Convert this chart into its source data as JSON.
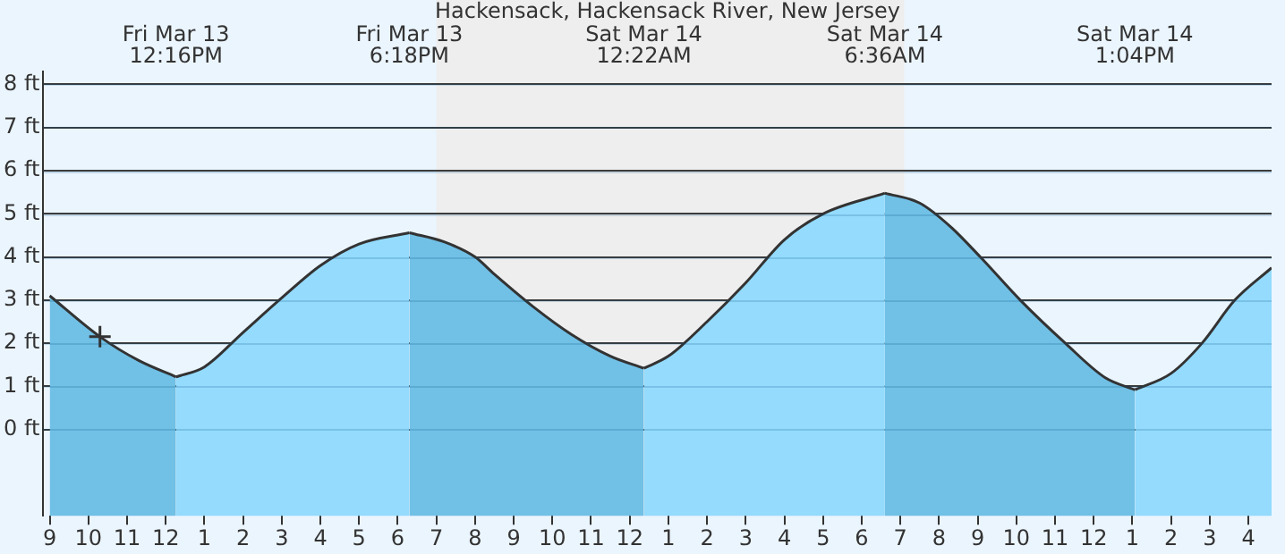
{
  "chart_data": {
    "type": "area",
    "title": "Hackensack, Hackensack River, New Jersey",
    "series": [
      {
        "color": "#71c0e6",
        "x": [
          "--03-13T09:00",
          "--03-13T10:18",
          "--03-13T11:18",
          "--03-13T12:16"
        ],
        "values": [
          3.1,
          2.15,
          1.6,
          1.22
        ]
      },
      {
        "color": "#94dbfd",
        "x": [
          "--03-13T12:16",
          "--03-13T13:00",
          "--03-13T14:00",
          "--03-13T15:00",
          "--03-13T16:00",
          "--03-13T17:00",
          "--03-13T18:18"
        ],
        "values": [
          1.22,
          1.45,
          2.25,
          3.05,
          3.8,
          4.3,
          4.56
        ]
      },
      {
        "color": "#71c0e6",
        "x": [
          "--03-13T18:18",
          "--03-13T19:12",
          "--03-13T20:00",
          "--03-13T20:30",
          "--03-13T21:30",
          "--03-13T22:30",
          "--03-13T23:30",
          "--03-14T00:22"
        ],
        "values": [
          4.56,
          4.35,
          4.0,
          3.6,
          2.85,
          2.2,
          1.7,
          1.42
        ]
      },
      {
        "color": "#94dbfd",
        "x": [
          "--03-14T00:22",
          "--03-14T01:00",
          "--03-14T02:00",
          "--03-14T03:00",
          "--03-14T04:00",
          "--03-14T05:00",
          "--03-14T06:36"
        ],
        "values": [
          1.42,
          1.7,
          2.5,
          3.4,
          4.4,
          5.0,
          5.48
        ]
      },
      {
        "color": "#71c0e6",
        "x": [
          "--03-14T06:36",
          "--03-14T07:30",
          "--03-14T08:18",
          "--03-14T09:04",
          "--03-14T10:06",
          "--03-14T11:16",
          "--03-14T12:18",
          "--03-14T13:04"
        ],
        "values": [
          5.48,
          5.25,
          4.7,
          4.0,
          3.0,
          2.0,
          1.2,
          0.92
        ]
      },
      {
        "color": "#94dbfd",
        "x": [
          "--03-14T13:04",
          "--03-14T14:00",
          "--03-14T14:48",
          "--03-14T15:39",
          "--03-14T16:36"
        ],
        "values": [
          0.92,
          1.3,
          2.0,
          3.0,
          3.75
        ]
      },
      {
        "type": "scatter",
        "color": "#333333",
        "marker": "cross",
        "x": [
          "--03-13T10:18"
        ],
        "values": [
          2.15
        ]
      }
    ],
    "xlim": [
      "--03-13T08:50",
      "--03-14T16:36"
    ],
    "xticks": [
      {
        "value": "--03-13T09:00",
        "label": "9"
      },
      {
        "value": "--03-13T10:00",
        "label": "10"
      },
      {
        "value": "--03-13T11:00",
        "label": "11"
      },
      {
        "value": "--03-13T12:00",
        "label": "12"
      },
      {
        "value": "--03-13T13:00",
        "label": "1"
      },
      {
        "value": "--03-13T14:00",
        "label": "2"
      },
      {
        "value": "--03-13T15:00",
        "label": "3"
      },
      {
        "value": "--03-13T16:00",
        "label": "4"
      },
      {
        "value": "--03-13T17:00",
        "label": "5"
      },
      {
        "value": "--03-13T18:00",
        "label": "6"
      },
      {
        "value": "--03-13T19:00",
        "label": "7"
      },
      {
        "value": "--03-13T20:00",
        "label": "8"
      },
      {
        "value": "--03-13T21:00",
        "label": "9"
      },
      {
        "value": "--03-13T22:00",
        "label": "10"
      },
      {
        "value": "--03-13T23:00",
        "label": "11"
      },
      {
        "value": "--03-14T00:00",
        "label": "12"
      },
      {
        "value": "--03-14T01:00",
        "label": "1"
      },
      {
        "value": "--03-14T02:00",
        "label": "2"
      },
      {
        "value": "--03-14T03:00",
        "label": "3"
      },
      {
        "value": "--03-14T04:00",
        "label": "4"
      },
      {
        "value": "--03-14T05:00",
        "label": "5"
      },
      {
        "value": "--03-14T06:00",
        "label": "6"
      },
      {
        "value": "--03-14T07:00",
        "label": "7"
      },
      {
        "value": "--03-14T08:00",
        "label": "8"
      },
      {
        "value": "--03-14T09:00",
        "label": "9"
      },
      {
        "value": "--03-14T10:00",
        "label": "10"
      },
      {
        "value": "--03-14T11:00",
        "label": "11"
      },
      {
        "value": "--03-14T12:00",
        "label": "12"
      },
      {
        "value": "--03-14T13:00",
        "label": "1"
      },
      {
        "value": "--03-14T14:00",
        "label": "2"
      },
      {
        "value": "--03-14T15:00",
        "label": "3"
      },
      {
        "value": "--03-14T16:00",
        "label": "4"
      }
    ],
    "x2lim": [
      "--03-13T08:50",
      "--03-14T16:36"
    ],
    "x2ticks": [
      {
        "value": "--03-13T12:16",
        "label": "Fri Mar 13\n12:16PM"
      },
      {
        "value": "--03-13T18:18",
        "label": "Fri Mar 13\n6:18PM"
      },
      {
        "value": "--03-14T00:22",
        "label": "Sat Mar 14\n12:22AM"
      },
      {
        "value": "--03-14T06:36",
        "label": "Sat Mar 14\n6:36AM"
      },
      {
        "value": "--03-14T13:04",
        "label": "Sat Mar 14\n1:04PM"
      }
    ],
    "ylim": [
      -2,
      8.3
    ],
    "yticks": [
      {
        "value": 0,
        "label": "0 ft"
      },
      {
        "value": 1,
        "label": "1 ft"
      },
      {
        "value": 2,
        "label": "2 ft"
      },
      {
        "value": 3,
        "label": "3 ft"
      },
      {
        "value": 4,
        "label": "4 ft"
      },
      {
        "value": 5,
        "label": "5 ft"
      },
      {
        "value": 6,
        "label": "6 ft"
      },
      {
        "value": 7,
        "label": "7 ft"
      },
      {
        "value": 8,
        "label": "8 ft"
      }
    ],
    "bands": [
      {
        "axis": "x",
        "from": "--03-13T19:00",
        "to": "--03-14T07:06",
        "color": "#eeeeee"
      }
    ],
    "grid": "y",
    "legend": false
  }
}
